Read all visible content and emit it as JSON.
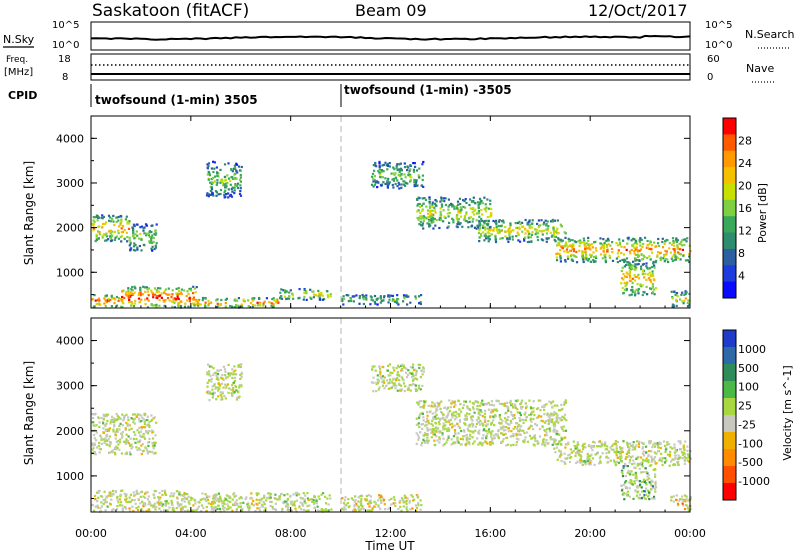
{
  "header": {
    "site": "Saskatoon (fitACF)",
    "beam": "Beam 09",
    "date": "12/Oct/2017"
  },
  "strip_labels": {
    "nsky": "N.Sky",
    "nsky_ticks": [
      "10^5",
      "10^0"
    ],
    "nsearch": "N.Search",
    "nsearch_ticks": [
      "10^5",
      "10^0"
    ],
    "freq": "Freq.",
    "freq_unit": "[MHz]",
    "freq_ticks": [
      "18",
      "8"
    ],
    "nave": "Nave",
    "nave_ticks": [
      "60",
      "0"
    ],
    "cpid": "CPID"
  },
  "cpid_segments": [
    "twofsound (1-min) 3505",
    "twofsound (1-min) -3505"
  ],
  "chart_data": [
    {
      "type": "heatmap",
      "panel": "power",
      "ylabel": "Slant Range [km]",
      "xlabel": "",
      "x_ticks": [
        "00:00",
        "04:00",
        "08:00",
        "12:00",
        "16:00",
        "20:00",
        "00:00"
      ],
      "y_ticks": [
        "1000",
        "2000",
        "3000",
        "4000"
      ],
      "ylim": [
        200,
        4500
      ],
      "colorbar_label": "Power [dB]",
      "colorbar_ticks": [
        "28",
        "24",
        "20",
        "16",
        "12",
        "8",
        "4"
      ],
      "colorbar_colors": [
        "#ff0000",
        "#ff5a00",
        "#ff9a00",
        "#f4c000",
        "#c8e000",
        "#7fd040",
        "#3aa85a",
        "#2e8c6e",
        "#2c5fa0",
        "#1e3cdc",
        "#0a0aff"
      ],
      "bands": [
        {
          "t0": 0.0,
          "t1": 1.2,
          "r0": 230,
          "r1": 520,
          "level": 0.85
        },
        {
          "t0": 1.2,
          "t1": 4.2,
          "r0": 230,
          "r1": 700,
          "level": 0.9
        },
        {
          "t0": 4.2,
          "t1": 7.5,
          "r0": 230,
          "r1": 450,
          "level": 0.75
        },
        {
          "t0": 7.5,
          "t1": 9.6,
          "r0": 400,
          "r1": 650,
          "level": 0.6
        },
        {
          "t0": 10.0,
          "t1": 13.2,
          "r0": 300,
          "r1": 520,
          "level": 0.45
        },
        {
          "t0": 0.0,
          "t1": 1.5,
          "r0": 1700,
          "r1": 2300,
          "level": 0.7
        },
        {
          "t0": 1.5,
          "t1": 2.6,
          "r0": 1500,
          "r1": 2100,
          "level": 0.5
        },
        {
          "t0": 4.6,
          "t1": 6.0,
          "r0": 2700,
          "r1": 3500,
          "level": 0.45
        },
        {
          "t0": 11.2,
          "t1": 13.3,
          "r0": 2900,
          "r1": 3500,
          "level": 0.45
        },
        {
          "t0": 13.0,
          "t1": 16.0,
          "r0": 2000,
          "r1": 2700,
          "level": 0.55
        },
        {
          "t0": 15.5,
          "t1": 19.0,
          "r0": 1700,
          "r1": 2200,
          "level": 0.6
        },
        {
          "t0": 18.5,
          "t1": 24.0,
          "r0": 1250,
          "r1": 1800,
          "level": 0.75
        },
        {
          "t0": 21.2,
          "t1": 22.6,
          "r0": 500,
          "r1": 1250,
          "level": 0.7
        },
        {
          "t0": 23.2,
          "t1": 24.0,
          "r0": 250,
          "r1": 600,
          "level": 0.6
        }
      ]
    },
    {
      "type": "heatmap",
      "panel": "velocity",
      "ylabel": "Slant Range [km]",
      "xlabel": "Time UT",
      "x_ticks": [
        "00:00",
        "04:00",
        "08:00",
        "12:00",
        "16:00",
        "20:00",
        "00:00"
      ],
      "y_ticks": [
        "1000",
        "2000",
        "3000",
        "4000"
      ],
      "ylim": [
        200,
        4500
      ],
      "colorbar_label": "Velocity [m s^-1]",
      "colorbar_ticks": [
        "1000",
        "500",
        "100",
        "25",
        "-25",
        "-100",
        "-500",
        "-1000"
      ],
      "colorbar_colors": [
        "#1e3cc8",
        "#2e6aa8",
        "#2e8c5a",
        "#4cb848",
        "#a8d840",
        "#c8c8c0",
        "#f0b000",
        "#ff8c00",
        "#ff5000",
        "#ff0000"
      ],
      "bands": [
        {
          "t0": 0.0,
          "t1": 4.2,
          "r0": 230,
          "r1": 700,
          "level": 0.55
        },
        {
          "t0": 4.2,
          "t1": 9.6,
          "r0": 230,
          "r1": 650,
          "level": 0.5
        },
        {
          "t0": 10.0,
          "t1": 13.2,
          "r0": 250,
          "r1": 600,
          "level": 0.6
        },
        {
          "t0": 0.0,
          "t1": 2.6,
          "r0": 1500,
          "r1": 2400,
          "level": 0.5
        },
        {
          "t0": 4.6,
          "t1": 6.0,
          "r0": 2700,
          "r1": 3500,
          "level": 0.5
        },
        {
          "t0": 11.2,
          "t1": 13.3,
          "r0": 2900,
          "r1": 3500,
          "level": 0.5
        },
        {
          "t0": 13.0,
          "t1": 19.0,
          "r0": 1700,
          "r1": 2700,
          "level": 0.5
        },
        {
          "t0": 18.5,
          "t1": 24.0,
          "r0": 1250,
          "r1": 1800,
          "level": 0.5
        },
        {
          "t0": 21.2,
          "t1": 22.6,
          "r0": 500,
          "r1": 1250,
          "level": 0.3
        },
        {
          "t0": 23.2,
          "t1": 24.0,
          "r0": 250,
          "r1": 600,
          "level": 0.7
        }
      ]
    }
  ]
}
